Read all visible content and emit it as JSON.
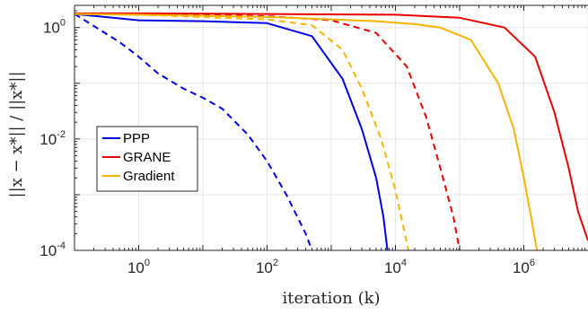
{
  "chart_data": {
    "type": "line",
    "xscale": "log",
    "yscale": "log",
    "xlim": [
      0.1,
      10000000
    ],
    "ylim": [
      0.0001,
      2.5
    ],
    "xlabel": "iteration (k)",
    "ylabel": "||x − x*|| / ||x*||",
    "x_ticks": [
      {
        "value": 1,
        "base": "10",
        "exp": "0"
      },
      {
        "value": 100,
        "base": "10",
        "exp": "2"
      },
      {
        "value": 10000,
        "base": "10",
        "exp": "4"
      },
      {
        "value": 1000000,
        "base": "10",
        "exp": "6"
      }
    ],
    "y_ticks": [
      {
        "value": 0.0001,
        "base": "10",
        "exp": "-4"
      },
      {
        "value": 0.01,
        "base": "10",
        "exp": "-2"
      },
      {
        "value": 1,
        "base": "10",
        "exp": "0"
      }
    ],
    "grid": true,
    "legend_position": "left-middle",
    "series": [
      {
        "name": "PPP",
        "color": "#0000e6",
        "style": "solid",
        "points": [
          [
            0.1,
            1.75
          ],
          [
            1,
            1.35
          ],
          [
            10,
            1.3
          ],
          [
            100,
            1.2
          ],
          [
            500,
            0.7
          ],
          [
            1500,
            0.12
          ],
          [
            3000,
            0.015
          ],
          [
            5000,
            0.002
          ],
          [
            6500,
            0.0004
          ],
          [
            7500,
            0.0001
          ]
        ]
      },
      {
        "name": "PPP",
        "color": "#0000e6",
        "style": "dashed",
        "points": [
          [
            0.1,
            1.75
          ],
          [
            0.5,
            0.55
          ],
          [
            1,
            0.3
          ],
          [
            2,
            0.15
          ],
          [
            5,
            0.08
          ],
          [
            10,
            0.055
          ],
          [
            20,
            0.035
          ],
          [
            50,
            0.012
          ],
          [
            100,
            0.004
          ],
          [
            200,
            0.001
          ],
          [
            400,
            0.0002
          ],
          [
            500,
            0.0001
          ]
        ]
      },
      {
        "name": "GRANE",
        "color": "#e60000",
        "style": "solid",
        "points": [
          [
            0.1,
            1.8
          ],
          [
            1,
            1.8
          ],
          [
            100,
            1.75
          ],
          [
            10000,
            1.7
          ],
          [
            100000,
            1.5
          ],
          [
            500000,
            1.0
          ],
          [
            1500000,
            0.3
          ],
          [
            3000000,
            0.03
          ],
          [
            5000000,
            0.003
          ],
          [
            7000000,
            0.0005
          ],
          [
            10000000,
            0.00015
          ]
        ]
      },
      {
        "name": "GRANE",
        "color": "#e60000",
        "style": "dashed",
        "points": [
          [
            0.1,
            1.8
          ],
          [
            1,
            1.75
          ],
          [
            100,
            1.6
          ],
          [
            1000,
            1.35
          ],
          [
            5000,
            0.8
          ],
          [
            15000,
            0.2
          ],
          [
            30000,
            0.025
          ],
          [
            50000,
            0.003
          ],
          [
            80000,
            0.0004
          ],
          [
            100000,
            0.0001
          ]
        ]
      },
      {
        "name": "Gradient",
        "color": "#f5b400",
        "style": "solid",
        "points": [
          [
            0.1,
            1.75
          ],
          [
            1,
            1.7
          ],
          [
            100,
            1.55
          ],
          [
            5000,
            1.3
          ],
          [
            20000,
            1.15
          ],
          [
            50000,
            1.0
          ],
          [
            150000,
            0.6
          ],
          [
            400000,
            0.1
          ],
          [
            700000,
            0.015
          ],
          [
            1000000,
            0.002
          ],
          [
            1300000,
            0.0004
          ],
          [
            1600000,
            0.0001
          ]
        ]
      },
      {
        "name": "Gradient",
        "color": "#f5b400",
        "style": "dashed",
        "points": [
          [
            0.1,
            1.75
          ],
          [
            1,
            1.7
          ],
          [
            100,
            1.4
          ],
          [
            500,
            1.1
          ],
          [
            1500,
            0.4
          ],
          [
            3000,
            0.08
          ],
          [
            6000,
            0.01
          ],
          [
            10000,
            0.0012
          ],
          [
            14000,
            0.0002
          ],
          [
            16000,
            0.0001
          ]
        ]
      }
    ],
    "legend": [
      {
        "label": "PPP",
        "color": "#0000e6"
      },
      {
        "label": "GRANE",
        "color": "#e60000"
      },
      {
        "label": "Gradient",
        "color": "#f5b400"
      }
    ]
  }
}
